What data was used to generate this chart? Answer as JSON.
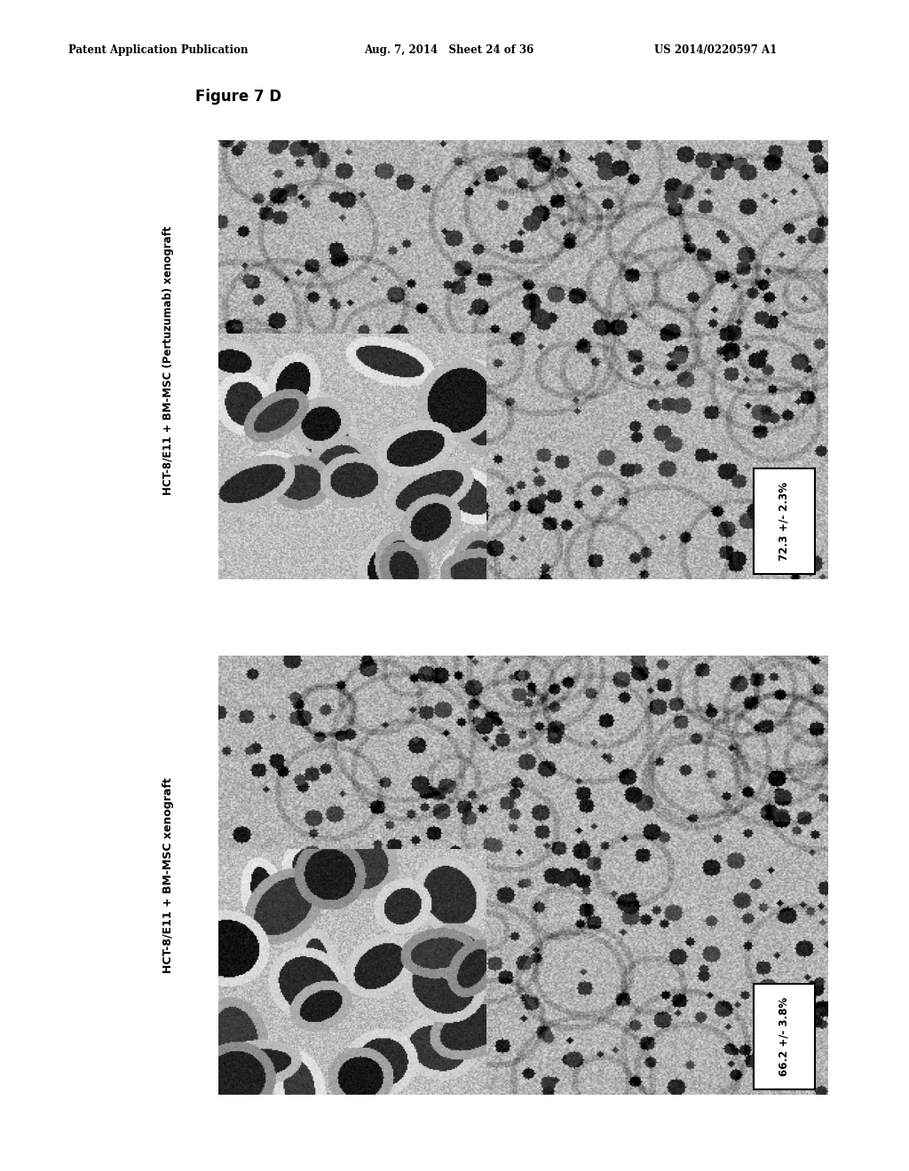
{
  "header_left": "Patent Application Publication",
  "header_mid": "Aug. 7, 2014   Sheet 24 of 36",
  "header_right": "US 2014/0220597 A1",
  "figure_title": "Figure 7 D",
  "panel_top_pct": "72.3 +/- 2.3%",
  "panel_bottom_pct": "66.2 +/- 3.8%",
  "panel_top_label_text": "HCT-8/E11 + BM-MSC (Pertuzumab) xenograft",
  "panel_bottom_label_text": "HCT-8/E11 + BM-MSC xenograft",
  "bg_color": "#ffffff",
  "text_color": "#000000"
}
